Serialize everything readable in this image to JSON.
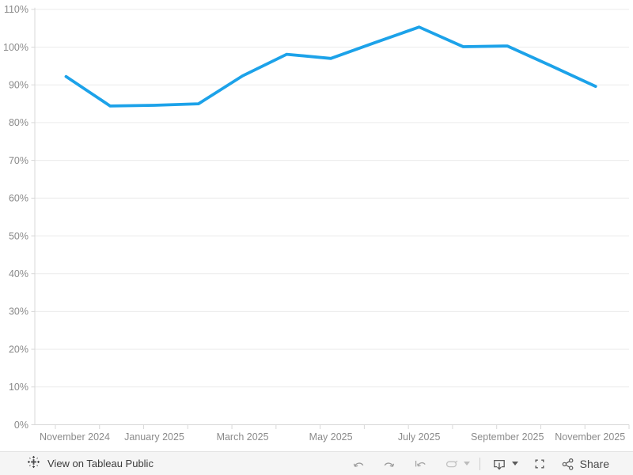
{
  "chart_data": {
    "type": "line",
    "title": "",
    "x": [
      "November 2024",
      "December 2024",
      "January 2025",
      "February 2025",
      "March 2025",
      "April 2025",
      "May 2025",
      "June 2025",
      "July 2025",
      "August 2025",
      "September 2025",
      "October 2025",
      "November 2025"
    ],
    "values": [
      92.2,
      84.4,
      84.6,
      85.0,
      92.4,
      98.1,
      97.0,
      101.2,
      105.3,
      100.1,
      100.3,
      95.0,
      89.6
    ],
    "unit": "%",
    "ylim": [
      0,
      110
    ],
    "y_tick_step": 10,
    "y_tick_labels": [
      "0%",
      "10%",
      "20%",
      "30%",
      "40%",
      "50%",
      "60%",
      "70%",
      "80%",
      "90%",
      "100%",
      "110%"
    ],
    "x_axis_labels": [
      "November 2024",
      "January 2025",
      "March 2025",
      "May 2025",
      "July 2025",
      "September 2025",
      "November 2025"
    ],
    "grid": true,
    "legend": "none",
    "line_color": "#1ca2e9"
  },
  "toolbar": {
    "view_on_label": "View on Tableau Public",
    "share_label": "Share"
  },
  "colors": {
    "grid": "#ececec",
    "axis": "#d8d8d8",
    "axis_text": "#8b8b8b",
    "toolbar_bg": "#f5f5f5",
    "toolbar_border": "#e2e2e2",
    "icon_gray": "#9a9a9a",
    "icon_disabled": "#c2c2c2",
    "icon_dark": "#5a5a5a",
    "logo": "#4a4a4c",
    "toolbar_text": "#3b3b3b"
  }
}
